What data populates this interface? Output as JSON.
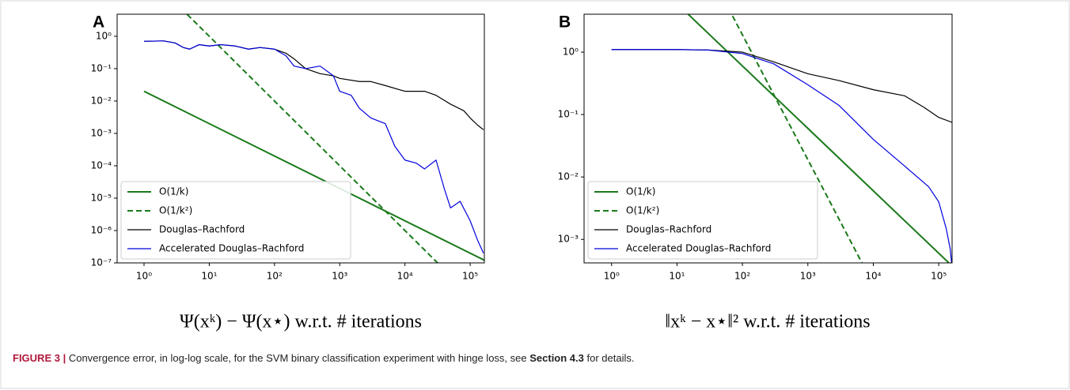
{
  "chart_data": [
    {
      "type": "line",
      "panel": "A",
      "xlabel": "Ψ(xᵏ) − Ψ(x⋆) w.r.t. # iterations",
      "log_x": true,
      "log_y": true,
      "legend": "lower left",
      "xlim": [
        0.387,
        165000
      ],
      "ylim": [
        1e-07,
        4.8
      ],
      "xticks": [
        {
          "value": 1,
          "label": "10⁰"
        },
        {
          "value": 10,
          "label": "10¹"
        },
        {
          "value": 100,
          "label": "10²"
        },
        {
          "value": 1000,
          "label": "10³"
        },
        {
          "value": 10000,
          "label": "10⁴"
        },
        {
          "value": 100000,
          "label": "10⁵"
        }
      ],
      "yticks": [
        {
          "value": 1e-07,
          "label": "10⁻⁷"
        },
        {
          "value": 1e-06,
          "label": "10⁻⁶"
        },
        {
          "value": 1e-05,
          "label": "10⁻⁵"
        },
        {
          "value": 0.0001,
          "label": "10⁻⁴"
        },
        {
          "value": 0.001,
          "label": "10⁻³"
        },
        {
          "value": 0.01,
          "label": "10⁻²"
        },
        {
          "value": 0.1,
          "label": "10⁻¹"
        },
        {
          "value": 1,
          "label": "10⁰"
        }
      ],
      "series": [
        {
          "name": "O(1/k)",
          "color": "#1a7a1a",
          "width": 2,
          "dashed": false,
          "x": [
            1,
            200000
          ],
          "values": [
            0.02,
            1e-07
          ]
        },
        {
          "name": "O(1/k²)",
          "color": "#1a7a1a",
          "width": 2,
          "dashed": true,
          "x": [
            1,
            31623
          ],
          "values": [
            100,
            1e-07
          ]
        },
        {
          "name": "Douglas–Rachford",
          "color": "#000000",
          "width": 1.2,
          "dashed": false,
          "x": [
            1,
            2,
            3,
            4,
            5,
            7,
            10,
            15,
            25,
            40,
            60,
            100,
            150,
            200,
            300,
            500,
            800,
            1000,
            2000,
            3000,
            5000,
            10000,
            20000,
            30000,
            50000,
            80000,
            100000,
            130000,
            160000
          ],
          "values": [
            0.7,
            0.72,
            0.62,
            0.45,
            0.4,
            0.55,
            0.5,
            0.55,
            0.5,
            0.4,
            0.45,
            0.4,
            0.3,
            0.2,
            0.1,
            0.07,
            0.06,
            0.05,
            0.04,
            0.04,
            0.03,
            0.02,
            0.02,
            0.015,
            0.008,
            0.005,
            0.003,
            0.0018,
            0.0013
          ]
        },
        {
          "name": "Accelerated Douglas–Rachford",
          "color": "#0000dd",
          "width": 1.2,
          "dashed": false,
          "x": [
            1,
            2,
            3,
            4,
            5,
            7,
            10,
            15,
            25,
            40,
            60,
            100,
            150,
            200,
            300,
            500,
            800,
            1000,
            1500,
            2000,
            3000,
            5000,
            7000,
            10000,
            15000,
            20000,
            30000,
            40000,
            50000,
            70000,
            100000,
            130000,
            160000
          ],
          "values": [
            0.7,
            0.72,
            0.62,
            0.45,
            0.4,
            0.55,
            0.5,
            0.55,
            0.5,
            0.4,
            0.45,
            0.4,
            0.25,
            0.12,
            0.1,
            0.12,
            0.06,
            0.02,
            0.015,
            0.006,
            0.003,
            0.002,
            0.0004,
            0.00015,
            0.00012,
            8e-05,
            0.00015,
            2e-05,
            5e-06,
            8e-06,
            2e-06,
            5e-07,
            2e-07
          ]
        }
      ]
    },
    {
      "type": "line",
      "panel": "B",
      "xlabel": "‖xᵏ − x⋆‖² w.r.t. # iterations",
      "log_x": true,
      "log_y": true,
      "legend": "lower left",
      "xlim": [
        0.38,
        160000
      ],
      "ylim": [
        0.00042,
        4.05
      ],
      "xticks": [
        {
          "value": 1,
          "label": "10⁰"
        },
        {
          "value": 10,
          "label": "10¹"
        },
        {
          "value": 100,
          "label": "10²"
        },
        {
          "value": 1000,
          "label": "10³"
        },
        {
          "value": 10000,
          "label": "10⁴"
        },
        {
          "value": 100000,
          "label": "10⁵"
        }
      ],
      "yticks": [
        {
          "value": 0.001,
          "label": "10⁻³"
        },
        {
          "value": 0.01,
          "label": "10⁻²"
        },
        {
          "value": 0.1,
          "label": "10⁻¹"
        },
        {
          "value": 1,
          "label": "10⁰"
        }
      ],
      "series": [
        {
          "name": "O(1/k)",
          "color": "#1a7a1a",
          "width": 2,
          "dashed": false,
          "x": [
            1,
            200000
          ],
          "values": [
            60,
            0.0003
          ]
        },
        {
          "name": "O(1/k²)",
          "color": "#1a7a1a",
          "width": 2,
          "dashed": true,
          "x": [
            1,
            30000
          ],
          "values": [
            19000,
            2.1e-05
          ]
        },
        {
          "name": "Douglas–Rachford",
          "color": "#000000",
          "width": 1.2,
          "dashed": false,
          "x": [
            1,
            10,
            30,
            100,
            300,
            1000,
            3000,
            10000,
            30000,
            60000,
            100000,
            160000
          ],
          "values": [
            1.1,
            1.1,
            1.08,
            1.0,
            0.7,
            0.45,
            0.35,
            0.25,
            0.2,
            0.13,
            0.09,
            0.075
          ]
        },
        {
          "name": "Accelerated Douglas–Rachford",
          "color": "#0000dd",
          "width": 1.2,
          "dashed": false,
          "x": [
            1,
            10,
            30,
            100,
            300,
            1000,
            3000,
            10000,
            30000,
            70000,
            100000,
            130000,
            150000,
            160000
          ],
          "values": [
            1.1,
            1.1,
            1.08,
            0.95,
            0.65,
            0.3,
            0.14,
            0.04,
            0.015,
            0.007,
            0.004,
            0.0015,
            0.0007,
            0.00035
          ]
        }
      ]
    }
  ],
  "caption": {
    "label": "FIGURE 3 |",
    "text1": "Convergence error, in log-log scale, for the SVM binary classification experiment with hinge loss, see ",
    "ref": "Section 4.3",
    "text2": " for details."
  }
}
